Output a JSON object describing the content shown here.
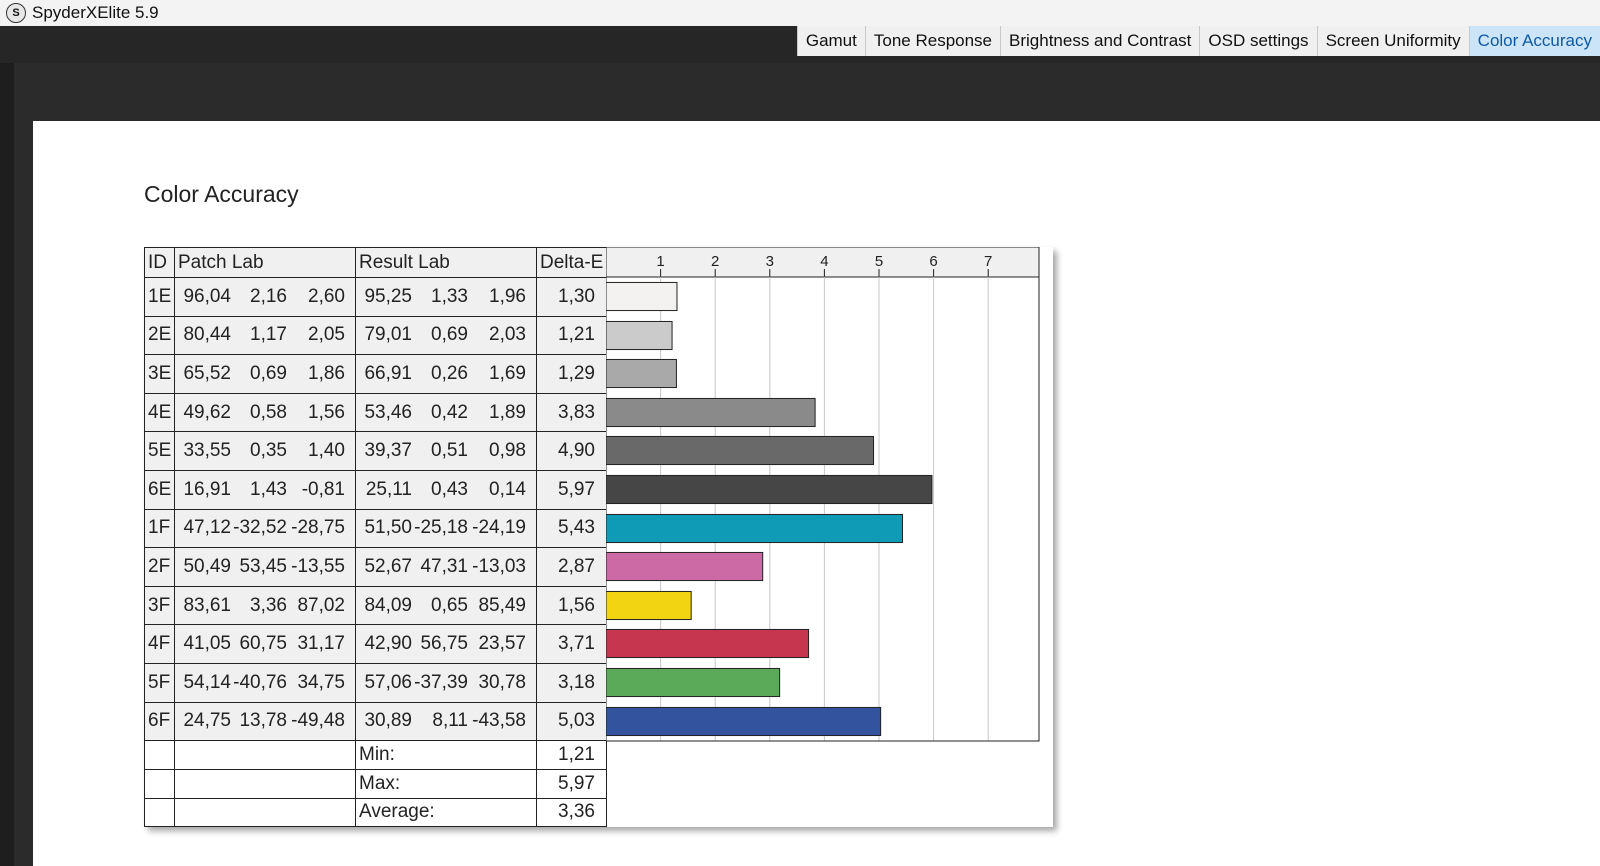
{
  "window": {
    "title": "SpyderXElite 5.9",
    "logo_letter": "S"
  },
  "tabs": [
    {
      "label": "Gamut",
      "active": false
    },
    {
      "label": "Tone Response",
      "active": false
    },
    {
      "label": "Brightness and Contrast",
      "active": false
    },
    {
      "label": "OSD settings",
      "active": false
    },
    {
      "label": "Screen Uniformity",
      "active": false
    },
    {
      "label": "Color Accuracy",
      "active": true
    }
  ],
  "report": {
    "title": "Color Accuracy",
    "headers": {
      "id": "ID",
      "patch": "Patch Lab",
      "result": "Result Lab",
      "delta": "Delta-E"
    },
    "rows": [
      {
        "id": "1E",
        "patch": [
          "96,04",
          "2,16",
          "2,60"
        ],
        "result": [
          "95,25",
          "1,33",
          "1,96"
        ],
        "delta": "1,30"
      },
      {
        "id": "2E",
        "patch": [
          "80,44",
          "1,17",
          "2,05"
        ],
        "result": [
          "79,01",
          "0,69",
          "2,03"
        ],
        "delta": "1,21"
      },
      {
        "id": "3E",
        "patch": [
          "65,52",
          "0,69",
          "1,86"
        ],
        "result": [
          "66,91",
          "0,26",
          "1,69"
        ],
        "delta": "1,29"
      },
      {
        "id": "4E",
        "patch": [
          "49,62",
          "0,58",
          "1,56"
        ],
        "result": [
          "53,46",
          "0,42",
          "1,89"
        ],
        "delta": "3,83"
      },
      {
        "id": "5E",
        "patch": [
          "33,55",
          "0,35",
          "1,40"
        ],
        "result": [
          "39,37",
          "0,51",
          "0,98"
        ],
        "delta": "4,90"
      },
      {
        "id": "6E",
        "patch": [
          "16,91",
          "1,43",
          "-0,81"
        ],
        "result": [
          "25,11",
          "0,43",
          "0,14"
        ],
        "delta": "5,97"
      },
      {
        "id": "1F",
        "patch": [
          "47,12",
          "-32,52",
          "-28,75"
        ],
        "result": [
          "51,50",
          "-25,18",
          "-24,19"
        ],
        "delta": "5,43"
      },
      {
        "id": "2F",
        "patch": [
          "50,49",
          "53,45",
          "-13,55"
        ],
        "result": [
          "52,67",
          "47,31",
          "-13,03"
        ],
        "delta": "2,87"
      },
      {
        "id": "3F",
        "patch": [
          "83,61",
          "3,36",
          "87,02"
        ],
        "result": [
          "84,09",
          "0,65",
          "85,49"
        ],
        "delta": "1,56"
      },
      {
        "id": "4F",
        "patch": [
          "41,05",
          "60,75",
          "31,17"
        ],
        "result": [
          "42,90",
          "56,75",
          "23,57"
        ],
        "delta": "3,71"
      },
      {
        "id": "5F",
        "patch": [
          "54,14",
          "-40,76",
          "34,75"
        ],
        "result": [
          "57,06",
          "-37,39",
          "30,78"
        ],
        "delta": "3,18"
      },
      {
        "id": "6F",
        "patch": [
          "24,75",
          "13,78",
          "-49,48"
        ],
        "result": [
          "30,89",
          "8,11",
          "-43,58"
        ],
        "delta": "5,03"
      }
    ],
    "stats": [
      {
        "label": "Min:",
        "value": "1,21"
      },
      {
        "label": "Max:",
        "value": "5,97"
      },
      {
        "label": "Average:",
        "value": "3,36"
      }
    ]
  },
  "chart_data": {
    "type": "bar",
    "orientation": "horizontal",
    "categories": [
      "1E",
      "2E",
      "3E",
      "4E",
      "5E",
      "6E",
      "1F",
      "2F",
      "3F",
      "4F",
      "5F",
      "6F"
    ],
    "values": [
      1.3,
      1.21,
      1.29,
      3.83,
      4.9,
      5.97,
      5.43,
      2.87,
      1.56,
      3.71,
      3.18,
      5.03
    ],
    "colors": [
      "#f4f2f0",
      "#cbcbcb",
      "#a9a9a9",
      "#8a8a8a",
      "#696969",
      "#464646",
      "#0f9bb5",
      "#cc6aa6",
      "#f2d412",
      "#c6374f",
      "#5aaa5a",
      "#34539e"
    ],
    "xticks": [
      "1",
      "2",
      "3",
      "4",
      "5",
      "6",
      "7"
    ],
    "xlim": [
      0,
      7.9
    ],
    "grid": true
  }
}
